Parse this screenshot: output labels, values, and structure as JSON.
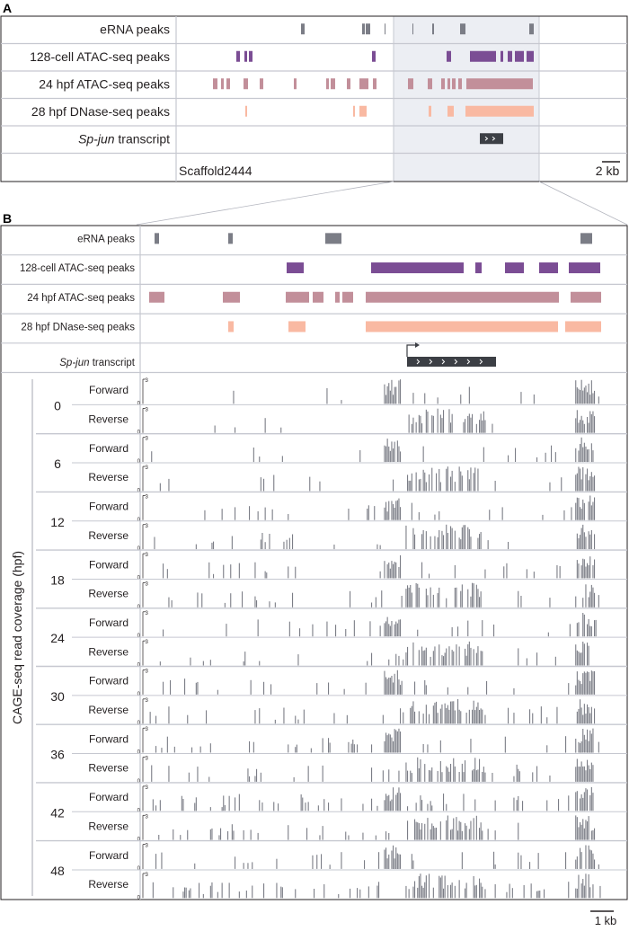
{
  "chart_data": [
    {
      "type": "bar",
      "panel": "A",
      "title": "",
      "tracks": [
        {
          "label": "eRNA peaks",
          "color": "#7b7d86",
          "features": [
            [
              335,
              339
            ],
            [
              403,
              406
            ],
            [
              407,
              412
            ],
            [
              428,
              429
            ],
            [
              459,
              460
            ],
            [
              481,
              483
            ],
            [
              512,
              518
            ],
            [
              589,
              594
            ]
          ]
        },
        {
          "label": "128-cell ATAC-seq peaks",
          "color": "#7b4d94",
          "features": [
            [
              263,
              267
            ],
            [
              272,
              275
            ],
            [
              277,
              281
            ],
            [
              414,
              418
            ],
            [
              497,
              502
            ],
            [
              523,
              552
            ],
            [
              557,
              560
            ],
            [
              565,
              570
            ],
            [
              573,
              583
            ],
            [
              586,
              594
            ]
          ]
        },
        {
          "label": "24 hpf ATAC-seq peaks",
          "color": "#c28f9a",
          "features": [
            [
              237,
              242
            ],
            [
              246,
              249
            ],
            [
              252,
              256
            ],
            [
              271,
              276
            ],
            [
              289,
              293
            ],
            [
              327,
              330
            ],
            [
              363,
              366
            ],
            [
              368,
              373
            ],
            [
              386,
              390
            ],
            [
              400,
              410
            ],
            [
              415,
              419
            ],
            [
              454,
              460
            ],
            [
              476,
              481
            ],
            [
              491,
              495
            ],
            [
              498,
              501
            ],
            [
              503,
              507
            ],
            [
              510,
              514
            ],
            [
              519,
              593
            ]
          ]
        },
        {
          "label": "28 hpf DNase-seq peaks",
          "color": "#f9b9a2",
          "features": [
            [
              273,
              275
            ],
            [
              393,
              395
            ],
            [
              400,
              408
            ],
            [
              477,
              480
            ],
            [
              498,
              505
            ],
            [
              518,
              594
            ]
          ]
        },
        {
          "label": "Sp-jun transcript",
          "italic_part": "Sp-jun",
          "suffix": " transcript",
          "color": "#3c3f45",
          "features": [
            [
              534,
              560
            ]
          ]
        }
      ],
      "footer_label": "Scaffold2444",
      "scale_bar": "2 kb",
      "highlight_region": [
        438,
        600
      ]
    },
    {
      "type": "bar",
      "panel": "B",
      "title": "",
      "tracks": [
        {
          "label": "eRNA peaks",
          "color": "#7b7d86",
          "features": [
            [
              172,
              177
            ],
            [
              254,
              259
            ],
            [
              362,
              380
            ],
            [
              646,
              659
            ]
          ]
        },
        {
          "label": "128-cell ATAC-seq peaks",
          "color": "#7b4d94",
          "features": [
            [
              319,
              338
            ],
            [
              413,
              516
            ],
            [
              529,
              536
            ],
            [
              562,
              583
            ],
            [
              600,
              621
            ],
            [
              633,
              668
            ]
          ]
        },
        {
          "label": "24 hpf ATAC-seq peaks",
          "color": "#c28f9a",
          "features": [
            [
              166,
              183
            ],
            [
              248,
              267
            ],
            [
              318,
              344
            ],
            [
              348,
              360
            ],
            [
              373,
              378
            ],
            [
              381,
              393
            ],
            [
              407,
              622
            ],
            [
              635,
              669
            ]
          ]
        },
        {
          "label": "28 hpf DNase-seq peaks",
          "color": "#f9b9a2",
          "features": [
            [
              254,
              260
            ],
            [
              321,
              340
            ],
            [
              407,
              621
            ],
            [
              629,
              669
            ]
          ]
        },
        {
          "label": "Sp-jun transcript",
          "italic_part": "Sp-jun",
          "suffix": " transcript",
          "color": "#3c3f45",
          "features": [
            [
              453,
              552
            ]
          ],
          "tss": 453
        }
      ],
      "ylabel": "CAGE-seq read coverage (hpf)",
      "timepoints": [
        "0",
        "6",
        "12",
        "18",
        "24",
        "30",
        "36",
        "42",
        "48"
      ],
      "strand_labels": [
        "Forward",
        "Reverse"
      ],
      "ytick_top": "3",
      "ytick_bottom": "0",
      "scale_bar": "1 kb",
      "coverage_color": "#7b7d86"
    }
  ],
  "panel_labels": {
    "a": "A",
    "b": "B"
  }
}
